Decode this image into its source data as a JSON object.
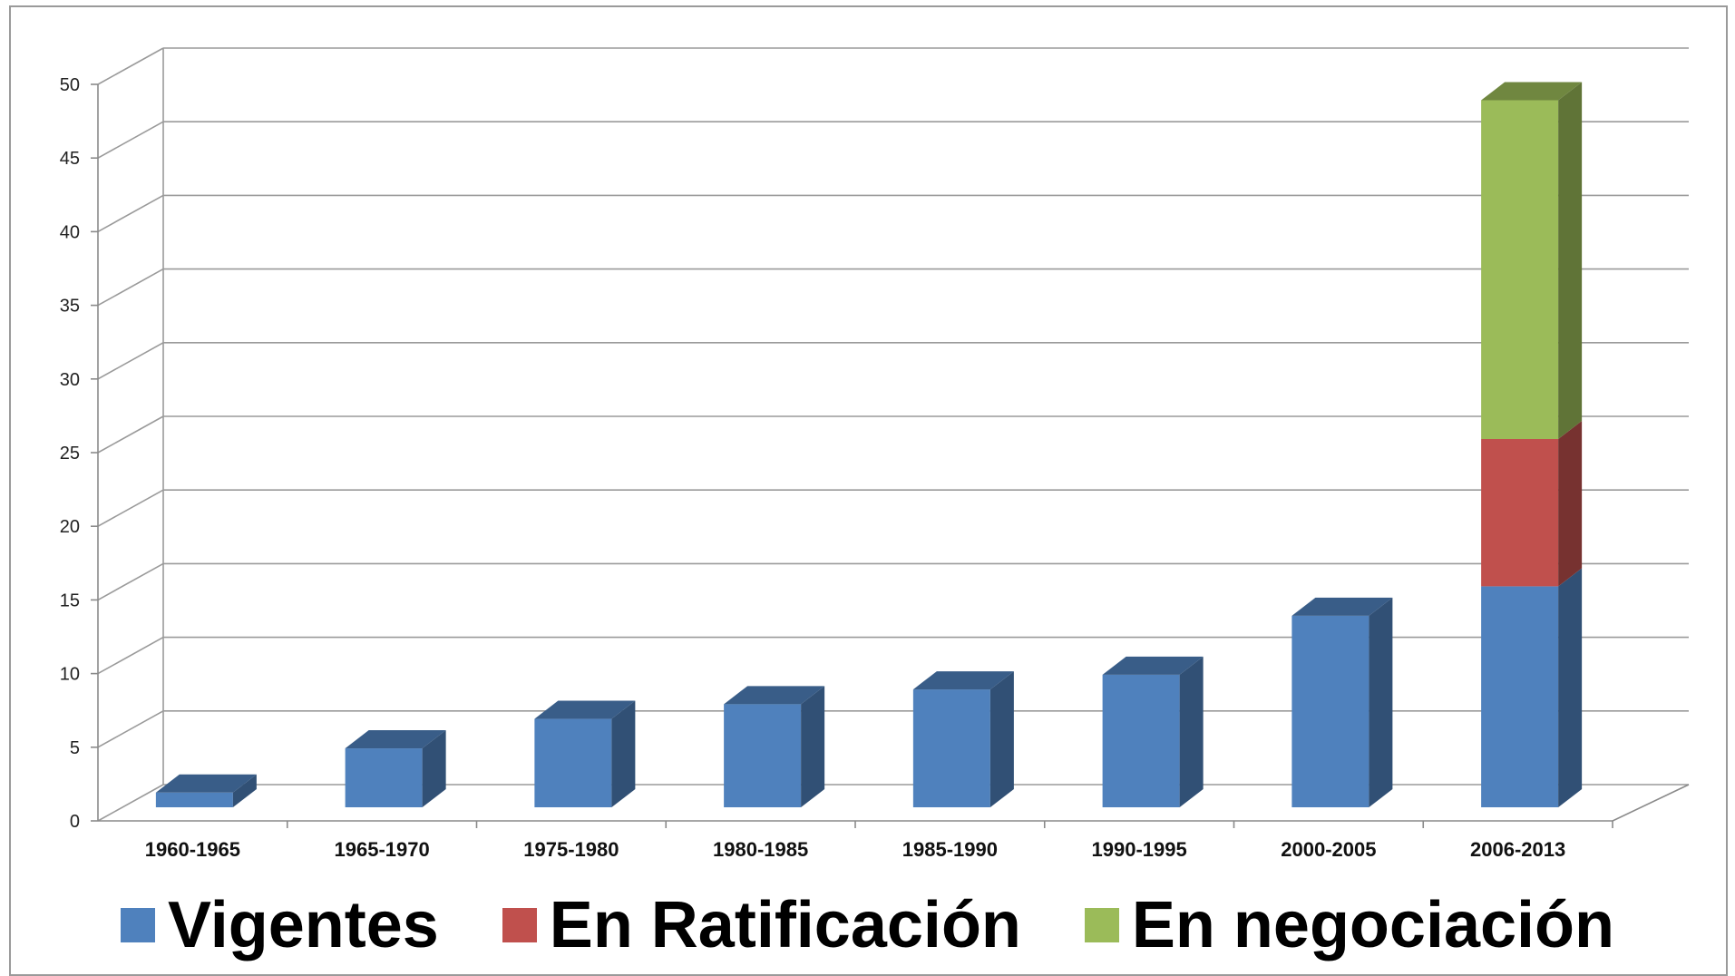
{
  "chart_data": {
    "type": "bar",
    "stacked": true,
    "three_d": true,
    "categories": [
      "1960-1965",
      "1965-1970",
      "1975-1980",
      "1980-1985",
      "1985-1990",
      "1990-1995",
      "2000-2005",
      "2006-2013"
    ],
    "series": [
      {
        "name": "Vigentes",
        "color": "#4F81BD",
        "values": [
          1,
          4,
          6,
          7,
          8,
          9,
          13,
          15
        ]
      },
      {
        "name": "En Ratificación",
        "color": "#C0504D",
        "values": [
          0,
          0,
          0,
          0,
          0,
          0,
          0,
          10
        ]
      },
      {
        "name": "En negociación",
        "color": "#9BBB59",
        "values": [
          0,
          0,
          0,
          0,
          0,
          0,
          0,
          23
        ]
      }
    ],
    "ylim": [
      0,
      50
    ],
    "yticks": [
      0,
      5,
      10,
      15,
      20,
      25,
      30,
      35,
      40,
      45,
      50
    ],
    "grid": true,
    "legend_position": "bottom"
  }
}
